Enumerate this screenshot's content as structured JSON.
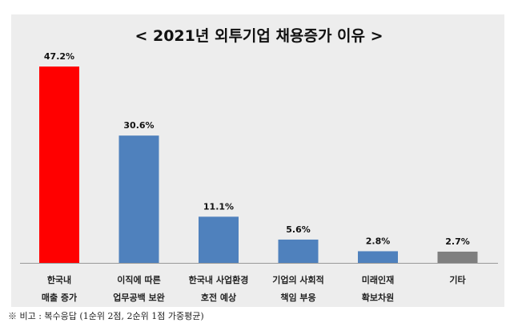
{
  "chart_data": {
    "type": "bar",
    "title": "< 2021년 외투기업 채용증가 이유 >",
    "categories": [
      [
        "한국내",
        "매출 증가"
      ],
      [
        "이직에 따른",
        "업무공백 보완"
      ],
      [
        "한국내 사업환경",
        "호전 예상"
      ],
      [
        "기업의 사회적",
        "책임 부응"
      ],
      [
        "미래인재",
        "확보차원"
      ],
      [
        "기타",
        ""
      ]
    ],
    "values": [
      47.2,
      30.6,
      11.1,
      5.6,
      2.8,
      2.7
    ],
    "labels": [
      "47.2%",
      "30.6%",
      "11.1%",
      "5.6%",
      "2.8%",
      "2.7%"
    ],
    "colors": [
      "#ff0000",
      "#4f81bd",
      "#4f81bd",
      "#4f81bd",
      "#4f81bd",
      "#7f7f7f"
    ],
    "xlabel": "",
    "ylabel": "",
    "ylim": [
      0,
      50
    ],
    "grid": false
  },
  "footnote": "※ 비고 : 복수응답 (1순위 2점, 2순위 1점 가중평균)"
}
